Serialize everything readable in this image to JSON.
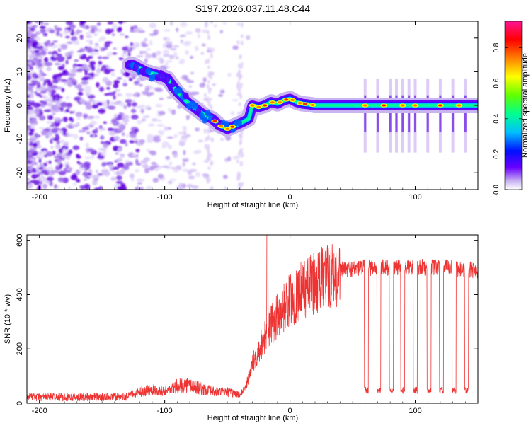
{
  "title": "S197.2026.037.11.48.C44",
  "chart_data": [
    {
      "type": "heatmap",
      "xlabel": "Height of straight line (km)",
      "ylabel": "Frequency (Hz)",
      "xlim": [
        -210,
        150
      ],
      "ylim": [
        -25,
        25
      ],
      "xticks": [
        -200,
        -100,
        0,
        100
      ],
      "yticks": [
        -20,
        -10,
        0,
        10,
        20
      ],
      "grid": false,
      "ridge": {
        "x": [
          -125,
          -115,
          -105,
          -98,
          -90,
          -82,
          -75,
          -68,
          -62,
          -56,
          -50,
          -44,
          -38,
          -33,
          -30,
          -25,
          -20,
          -15,
          -10,
          -5,
          0,
          5,
          10,
          15,
          20,
          40,
          60,
          80,
          100,
          120,
          150
        ],
        "freq": [
          12,
          10,
          9,
          8,
          4,
          1,
          -1,
          -3,
          -4,
          -6,
          -7,
          -6,
          -5,
          -4,
          0,
          -0.5,
          0,
          1,
          0.5,
          1.5,
          2,
          1,
          0.5,
          0.3,
          0,
          0,
          0,
          0,
          0,
          0,
          0
        ]
      },
      "vertical_streaks_x": [
        60,
        70,
        80,
        85,
        90,
        95,
        100,
        110,
        120,
        130,
        140
      ],
      "colorbar": {
        "label": "Normalized spectral amplitude",
        "ticks": [
          0.0,
          0.2,
          0.4,
          0.6,
          0.8
        ],
        "range": [
          0,
          0.95
        ],
        "colors": [
          "#ffffff",
          "#b89af0",
          "#6a00ff",
          "#0000ff",
          "#00c0ff",
          "#00ff80",
          "#80ff00",
          "#ffff00",
          "#ff8000",
          "#ff0000",
          "#ff1493"
        ]
      }
    },
    {
      "type": "line",
      "xlabel": "Height of straight line (km)",
      "ylabel": "SNR (10 * v/v)",
      "xlim": [
        -210,
        150
      ],
      "ylim": [
        0,
        620
      ],
      "xticks": [
        -200,
        -100,
        0,
        100
      ],
      "yticks": [
        0,
        200,
        400,
        600
      ],
      "color": "#ee3333",
      "grid": false,
      "envelope": {
        "x": [
          -210,
          -130,
          -120,
          -110,
          -100,
          -90,
          -80,
          -70,
          -60,
          -50,
          -40,
          -35,
          -30,
          -25,
          -20,
          -15,
          -10,
          -5,
          0,
          10,
          20,
          30,
          40,
          50,
          60,
          80,
          100,
          120,
          150
        ],
        "snr": [
          20,
          25,
          40,
          50,
          40,
          60,
          65,
          50,
          40,
          40,
          30,
          70,
          150,
          210,
          260,
          300,
          340,
          370,
          400,
          440,
          470,
          490,
          500,
          505,
          510,
          510,
          510,
          510,
          500
        ]
      },
      "spike": {
        "x": -18,
        "snr": 620
      },
      "dropouts": {
        "x": [
          61,
          71,
          81,
          90,
          100,
          111,
          121,
          131,
          141
        ],
        "snr": 35
      }
    }
  ]
}
